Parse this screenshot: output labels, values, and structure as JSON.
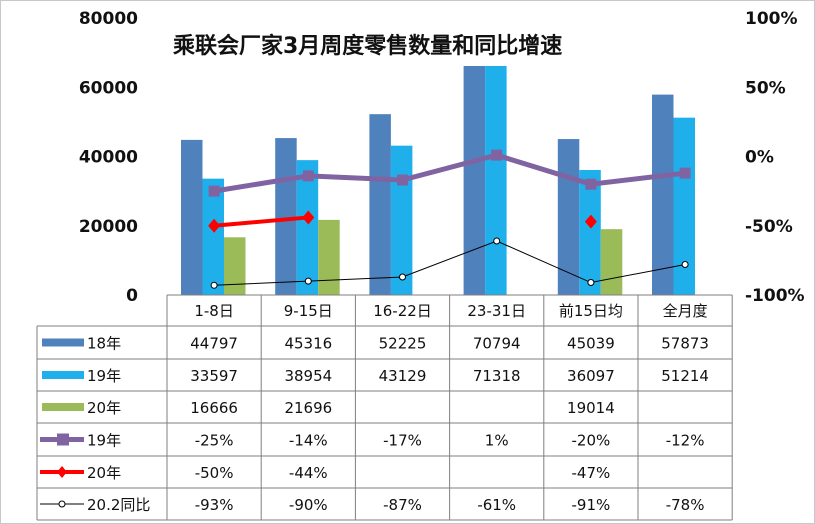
{
  "chart_data": {
    "type": "bar",
    "title": "乘联会厂家3月周度零售数量和同比增速",
    "categories": [
      "1-8日",
      "9-15日",
      "16-22日",
      "23-31日",
      "前15日均",
      "全月度"
    ],
    "left_axis": {
      "ylim": [
        0,
        80000
      ],
      "ticks": [
        "0",
        "20000",
        "40000",
        "60000",
        "80000"
      ]
    },
    "right_axis": {
      "ylim": [
        -1,
        1
      ],
      "ticks": [
        "-100%",
        "-50%",
        "0%",
        "50%",
        "100%"
      ]
    },
    "bar_series": [
      {
        "name": "18年",
        "color": "#4f81bd",
        "values": [
          44797,
          45316,
          52225,
          70794,
          45039,
          57873
        ],
        "labels": [
          "44797",
          "45316",
          "52225",
          "70794",
          "45039",
          "57873"
        ]
      },
      {
        "name": "19年",
        "color": "#1fb0ec",
        "values": [
          33597,
          38954,
          43129,
          71318,
          36097,
          51214
        ],
        "labels": [
          "33597",
          "38954",
          "43129",
          "71318",
          "36097",
          "51214"
        ]
      },
      {
        "name": "20年",
        "color": "#9bbb59",
        "values": [
          16666,
          21696,
          null,
          null,
          19014,
          null
        ],
        "labels": [
          "16666",
          "21696",
          "",
          "",
          "19014",
          ""
        ]
      }
    ],
    "line_series": [
      {
        "name": "19年",
        "color": "#8064a2",
        "marker": "square",
        "values": [
          -0.25,
          -0.14,
          -0.17,
          0.01,
          -0.2,
          -0.12
        ],
        "labels": [
          "-25%",
          "-14%",
          "-17%",
          "1%",
          "-20%",
          "-12%"
        ]
      },
      {
        "name": "20年",
        "color": "#ff0000",
        "marker": "diamond",
        "values": [
          -0.5,
          -0.44,
          null,
          null,
          -0.47,
          null
        ],
        "labels": [
          "-50%",
          "-44%",
          "",
          "",
          "-47%",
          ""
        ]
      },
      {
        "name": "20.2同比",
        "color": "#000000",
        "marker": "circle",
        "values": [
          -0.93,
          -0.9,
          -0.87,
          -0.61,
          -0.91,
          -0.78
        ],
        "labels": [
          "-93%",
          "-90%",
          "-87%",
          "-61%",
          "-91%",
          "-78%"
        ]
      }
    ],
    "legend": "data-table",
    "grid": false
  }
}
